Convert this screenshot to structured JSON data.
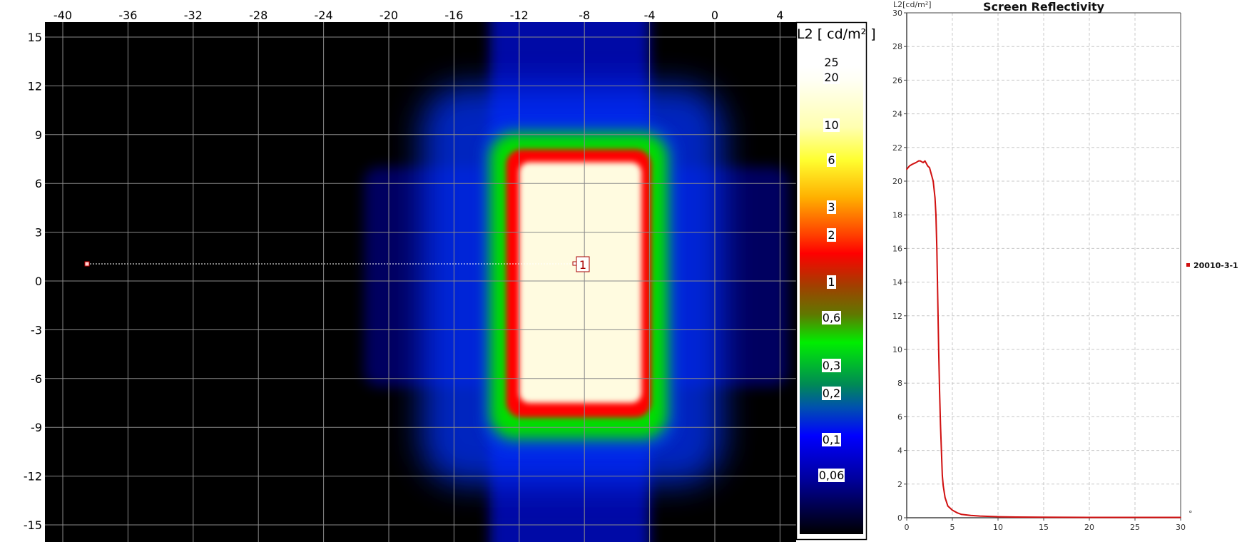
{
  "heatmap": {
    "x_ticks": [
      -40,
      -36,
      -32,
      -28,
      -24,
      -20,
      -16,
      -12,
      -8,
      -4,
      0,
      4
    ],
    "y_ticks": [
      15,
      12,
      9,
      6,
      3,
      0,
      -3,
      -6,
      -9,
      -12,
      -15
    ],
    "xlim": [
      -41.1,
      5.1
    ],
    "ylim": [
      -16.0,
      15.9
    ],
    "marker_label": "1",
    "colorbar": {
      "title": "L2 [ cd/m² ]",
      "scale": "log",
      "labels": [
        "25",
        "20",
        "10",
        "6",
        "3",
        "2",
        "1",
        "0,6",
        "0,3",
        "0,2",
        "0,1",
        "0,06"
      ],
      "colors": [
        "#fffff4",
        "#ffffc0",
        "#ffff20",
        "#ff9000",
        "#ff0000",
        "#a04000",
        "#00ee00",
        "#008070",
        "#0000ff",
        "#000000"
      ]
    }
  },
  "chart_data": {
    "type": "line",
    "title": "Screen Reflectivity",
    "ylabel": "L2[cd/m²]",
    "xlabel": "°",
    "xlim": [
      0,
      30
    ],
    "ylim": [
      0,
      30
    ],
    "x_ticks": [
      0,
      5,
      10,
      15,
      20,
      25,
      30
    ],
    "y_ticks": [
      0,
      2,
      4,
      6,
      8,
      10,
      12,
      14,
      16,
      18,
      20,
      22,
      24,
      26,
      28,
      30
    ],
    "grid": true,
    "legend": "right",
    "series": [
      {
        "name": "20010-3-1",
        "color": "#d01010",
        "x": [
          0,
          0.3,
          0.6,
          1.0,
          1.3,
          1.5,
          1.8,
          2.0,
          2.3,
          2.5,
          2.7,
          2.9,
          3.1,
          3.2,
          3.3,
          3.4,
          3.5,
          3.6,
          3.7,
          3.8,
          3.9,
          4.0,
          4.2,
          4.5,
          5.0,
          5.5,
          6.0,
          7.0,
          8.0,
          10.0,
          12.0,
          15.0,
          20.0,
          25.0,
          30.0
        ],
        "y": [
          20.7,
          20.9,
          21.0,
          21.1,
          21.2,
          21.2,
          21.1,
          21.2,
          20.9,
          20.8,
          20.4,
          20.0,
          19.0,
          18.0,
          16.0,
          13.0,
          10.0,
          7.5,
          5.5,
          4.0,
          2.5,
          1.9,
          1.2,
          0.7,
          0.45,
          0.3,
          0.2,
          0.14,
          0.1,
          0.06,
          0.04,
          0.03,
          0.02,
          0.02,
          0.02
        ]
      }
    ]
  }
}
